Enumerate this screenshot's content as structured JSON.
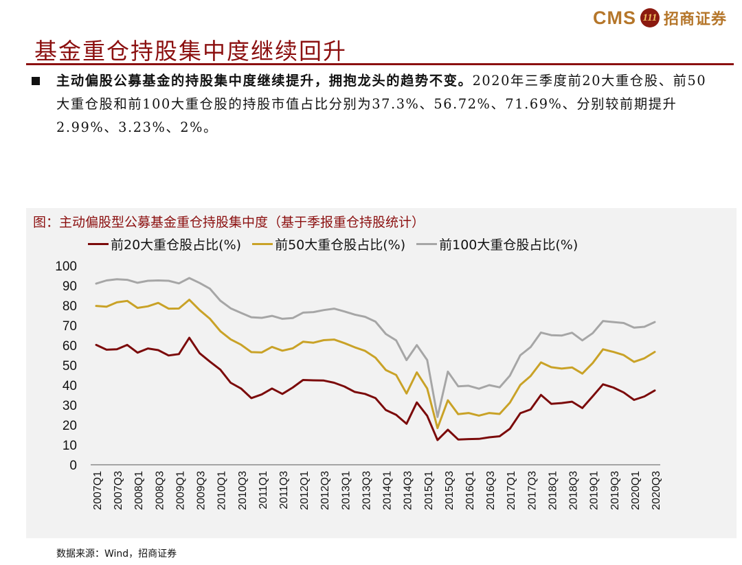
{
  "header": {
    "logo_text": "CMS",
    "logo_badge": "111",
    "logo_cn": "招商证券",
    "title": "基金重仓持股集中度继续回升"
  },
  "body": {
    "lead_bold": "主动偏股公募基金的持股集中度继续提升，拥抱龙头的趋势不变。",
    "detail": "2020年三季度前20大重仓股、前50大重仓股和前100大重仓股的持股市值占比分别为37.3%、56.72%、71.69%、分别较前期提升2.99%、3.23%、2%。"
  },
  "figure": {
    "caption": "图：主动偏股型公募基金重仓持股集中度（基于季报重仓持股统计）",
    "source": "数据来源：Wind，招商证券"
  },
  "chart_data": {
    "type": "line",
    "title": "",
    "xlabel": "",
    "ylabel": "",
    "ylim": [
      0,
      100
    ],
    "yticks": [
      0,
      10,
      20,
      30,
      40,
      50,
      60,
      70,
      80,
      90,
      100
    ],
    "x": [
      "2007Q1",
      "2007Q2",
      "2007Q3",
      "2007Q4",
      "2008Q1",
      "2008Q2",
      "2008Q3",
      "2008Q4",
      "2009Q1",
      "2009Q2",
      "2009Q3",
      "2009Q4",
      "2010Q1",
      "2010Q2",
      "2010Q3",
      "2010Q4",
      "2011Q1",
      "2011Q2",
      "2011Q3",
      "2011Q4",
      "2012Q1",
      "2012Q2",
      "2012Q3",
      "2012Q4",
      "2013Q1",
      "2013Q2",
      "2013Q3",
      "2013Q4",
      "2014Q1",
      "2014Q2",
      "2014Q3",
      "2014Q4",
      "2015Q1",
      "2015Q2",
      "2015Q3",
      "2015Q4",
      "2016Q1",
      "2016Q2",
      "2016Q3",
      "2016Q4",
      "2017Q1",
      "2017Q2",
      "2017Q3",
      "2017Q4",
      "2018Q1",
      "2018Q2",
      "2018Q3",
      "2018Q4",
      "2019Q1",
      "2019Q2",
      "2019Q3",
      "2019Q4",
      "2020Q1",
      "2020Q2",
      "2020Q3"
    ],
    "xtick_labels": [
      "2007Q1",
      "2007Q3",
      "2008Q1",
      "2008Q3",
      "2009Q1",
      "2009Q3",
      "2010Q1",
      "2010Q3",
      "2011Q1",
      "2011Q3",
      "2012Q1",
      "2012Q3",
      "2013Q1",
      "2013Q3",
      "2014Q1",
      "2014Q3",
      "2015Q1",
      "2015Q3",
      "2016Q1",
      "2016Q3",
      "2017Q1",
      "2017Q3",
      "2018Q1",
      "2018Q3",
      "2019Q1",
      "2019Q3",
      "2020Q1",
      "2020Q3"
    ],
    "series": [
      {
        "name": "前20大重仓股占比(%)",
        "color": "#7b0a0a",
        "values": [
          60.2,
          57.8,
          58.0,
          60.2,
          56.3,
          58.4,
          57.6,
          54.9,
          55.6,
          63.8,
          56.0,
          51.8,
          47.8,
          41.2,
          38.3,
          33.5,
          35.3,
          38.3,
          35.6,
          38.8,
          42.6,
          42.4,
          42.3,
          41.2,
          39.3,
          36.6,
          35.6,
          33.5,
          27.5,
          25.1,
          20.6,
          31.3,
          24.6,
          12.4,
          17.6,
          12.7,
          12.9,
          13.0,
          13.8,
          14.3,
          18.1,
          25.9,
          27.8,
          35.1,
          30.6,
          31.0,
          31.7,
          28.5,
          34.4,
          40.4,
          38.8,
          36.3,
          32.6,
          34.3,
          37.3
        ]
      },
      {
        "name": "前50大重仓股占比(%)",
        "color": "#c9a227",
        "values": [
          79.8,
          79.4,
          81.6,
          82.3,
          78.8,
          79.6,
          81.3,
          78.4,
          78.5,
          82.9,
          77.7,
          73.3,
          67.1,
          63.0,
          60.3,
          56.6,
          56.4,
          59.2,
          57.3,
          58.5,
          61.8,
          61.3,
          62.6,
          62.9,
          61.1,
          59.0,
          57.2,
          53.8,
          47.6,
          45.1,
          35.8,
          46.4,
          38.3,
          18.4,
          32.4,
          25.4,
          26.0,
          24.7,
          26.0,
          25.5,
          31.2,
          40.1,
          44.6,
          51.4,
          49.0,
          48.3,
          48.9,
          45.8,
          51.1,
          58.0,
          56.7,
          55.1,
          51.7,
          53.5,
          56.7
        ]
      },
      {
        "name": "前100大重仓股占比(%)",
        "color": "#a6a6a6",
        "values": [
          91.0,
          92.6,
          93.2,
          92.9,
          91.4,
          92.4,
          92.6,
          92.4,
          91.1,
          93.8,
          91.3,
          88.4,
          82.4,
          78.6,
          76.3,
          74.1,
          73.8,
          74.8,
          73.3,
          73.7,
          76.4,
          76.7,
          77.7,
          78.4,
          77.0,
          75.4,
          74.3,
          71.9,
          65.7,
          62.5,
          52.6,
          60.1,
          52.6,
          24.0,
          46.8,
          39.4,
          39.7,
          38.2,
          40.0,
          38.9,
          44.8,
          55.0,
          59.1,
          66.4,
          65.1,
          64.9,
          66.3,
          62.5,
          66.1,
          72.2,
          71.7,
          71.2,
          68.9,
          69.3,
          71.7
        ]
      }
    ]
  }
}
